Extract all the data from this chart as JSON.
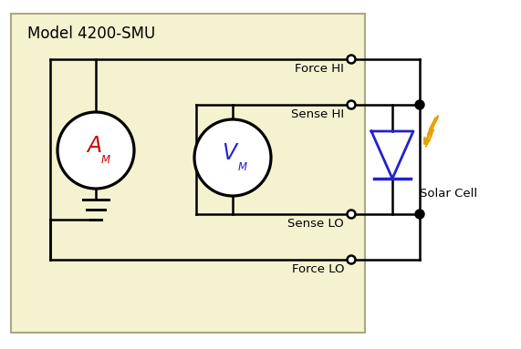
{
  "title": "Model 4200-SMU",
  "bg_color": "#f5f2d0",
  "box_edge_color": "#aaa880",
  "line_color": "#000000",
  "text_color": "#000000",
  "am_color": "#cc0000",
  "vm_color": "#2222cc",
  "diode_color": "#2222cc",
  "lightning_color": "#e8a000",
  "solar_cell_label": "Solar Cell",
  "force_hi_label": "Force HI",
  "sense_hi_label": "Sense HI",
  "sense_lo_label": "Sense LO",
  "force_lo_label": "Force LO",
  "figsize": [
    5.71,
    3.83
  ],
  "dpi": 100
}
